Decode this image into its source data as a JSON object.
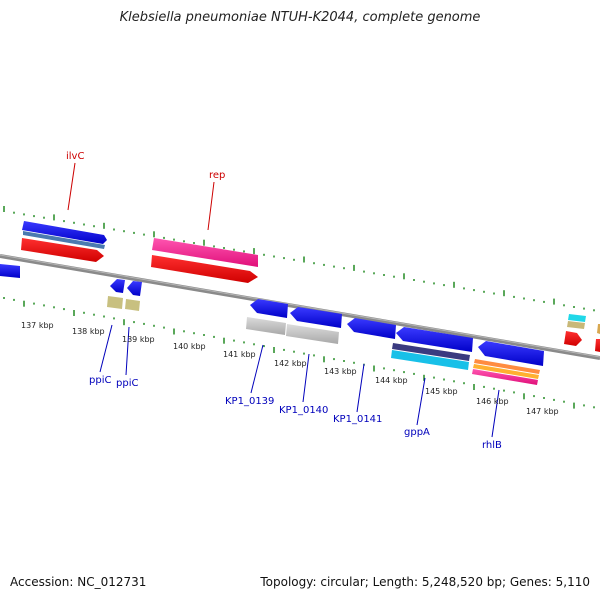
{
  "title": "Klebsiella pneumoniae NTUH-K2044, complete genome",
  "footer": {
    "accession": "Accession: NC_012731",
    "summary": "Topology: circular; Length: 5,248,520 bp; Genes: 5,110"
  },
  "kbp_labels": [
    "137 kbp",
    "138 kbp",
    "139 kbp",
    "140 kbp",
    "141 kbp",
    "142 kbp",
    "143 kbp",
    "144 kbp",
    "145 kbp",
    "146 kbp",
    "147 kbp"
  ],
  "gene_labels_top": [
    "ilvC",
    "rep"
  ],
  "gene_labels_bottom": [
    "ppiC",
    "ppiC",
    "KP1_0139",
    "KP1_0140",
    "KP1_0141",
    "gppA",
    "rhlB"
  ],
  "colors": {
    "forward_cds": "#0000ee",
    "reverse_cds": "#0000ee",
    "rna": "#ff0000",
    "mobile": "#ff1493",
    "backbone": "#808080",
    "tick": "#228b22",
    "top_label": "#cc0000",
    "bottom_label": "#0000bb"
  }
}
